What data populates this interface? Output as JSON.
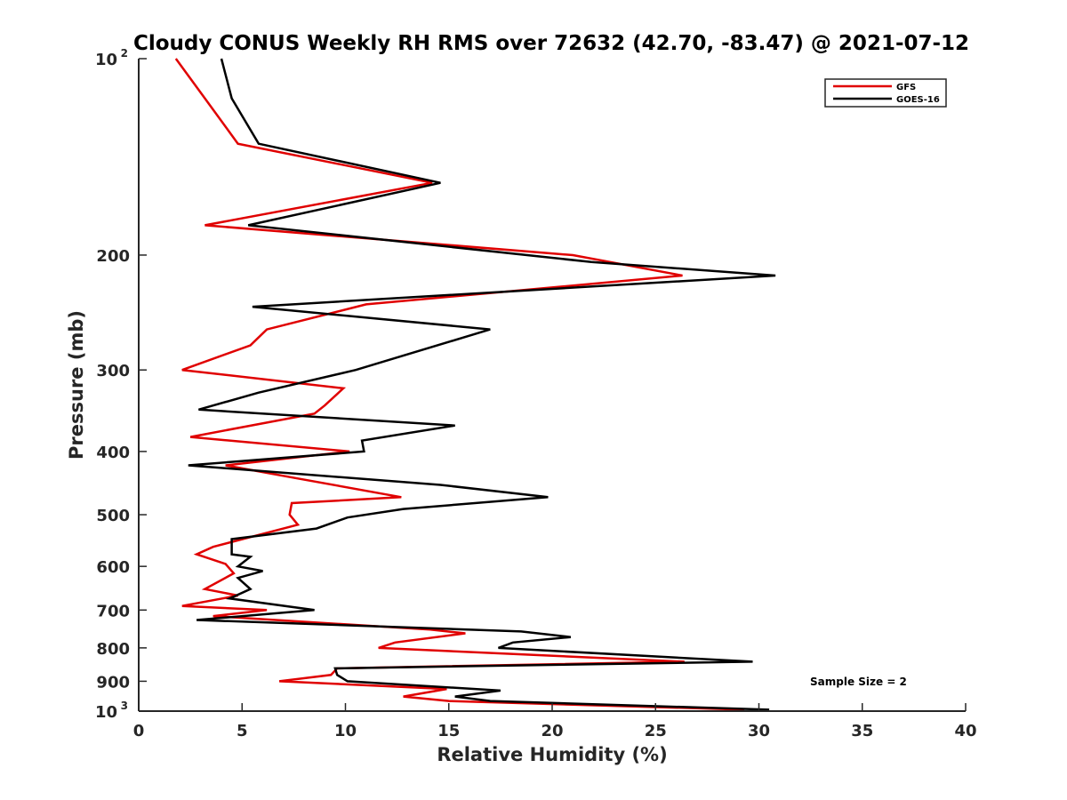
{
  "chart_data": {
    "type": "line",
    "title": "Cloudy CONUS Weekly RH RMS over 72632 (42.70, -83.47) @ 2021-07-12",
    "xlabel": "Relative Humidity (%)",
    "ylabel": "Pressure (mb)",
    "xlim": [
      0,
      40
    ],
    "ylim": [
      100,
      1000
    ],
    "yscale": "log",
    "y_reversed": true,
    "xticks": [
      0,
      5,
      10,
      15,
      20,
      25,
      30,
      35,
      40
    ],
    "xtick_labels": [
      "0",
      "5",
      "10",
      "15",
      "20",
      "25",
      "30",
      "35",
      "40"
    ],
    "yticks": [
      200,
      300,
      400,
      500,
      600,
      700,
      800,
      900
    ],
    "ytick_labels": [
      "200",
      "300",
      "400",
      "500",
      "600",
      "700",
      "800",
      "900"
    ],
    "ytick_ends": [
      {
        "value": 100,
        "base": "10",
        "exp": "2"
      },
      {
        "value": 1000,
        "base": "10",
        "exp": "3"
      }
    ],
    "grid": false,
    "legend_position": "top-right",
    "annotation": "Sample Size = 2",
    "series": [
      {
        "name": "GFS",
        "color": "#e00000",
        "points": [
          [
            1.8,
            100
          ],
          [
            3.2,
            115
          ],
          [
            4.8,
            135
          ],
          [
            14.2,
            155
          ],
          [
            3.2,
            180
          ],
          [
            21.0,
            200
          ],
          [
            26.3,
            215
          ],
          [
            11.0,
            238
          ],
          [
            6.2,
            260
          ],
          [
            5.4,
            275
          ],
          [
            2.1,
            300
          ],
          [
            9.9,
            320
          ],
          [
            9.0,
            340
          ],
          [
            8.5,
            350
          ],
          [
            2.5,
            380
          ],
          [
            10.2,
            400
          ],
          [
            4.2,
            420
          ],
          [
            7.7,
            440
          ],
          [
            12.7,
            470
          ],
          [
            7.4,
            480
          ],
          [
            7.3,
            500
          ],
          [
            7.7,
            518
          ],
          [
            3.6,
            560
          ],
          [
            2.8,
            575
          ],
          [
            4.2,
            595
          ],
          [
            4.6,
            615
          ],
          [
            3.2,
            650
          ],
          [
            4.8,
            665
          ],
          [
            2.1,
            690
          ],
          [
            6.2,
            700
          ],
          [
            3.6,
            715
          ],
          [
            14.1,
            750
          ],
          [
            15.8,
            760
          ],
          [
            12.4,
            785
          ],
          [
            11.6,
            800
          ],
          [
            26.4,
            840
          ],
          [
            9.6,
            860
          ],
          [
            9.3,
            880
          ],
          [
            6.8,
            900
          ],
          [
            14.9,
            925
          ],
          [
            12.8,
            950
          ],
          [
            15.0,
            965
          ],
          [
            29.3,
            995
          ]
        ]
      },
      {
        "name": "GOES-16",
        "color": "#000000",
        "points": [
          [
            4.0,
            100
          ],
          [
            4.5,
            115
          ],
          [
            5.8,
            135
          ],
          [
            14.6,
            155
          ],
          [
            5.3,
            180
          ],
          [
            21.9,
            205
          ],
          [
            30.8,
            215
          ],
          [
            5.5,
            240
          ],
          [
            17.0,
            260
          ],
          [
            10.5,
            300
          ],
          [
            5.8,
            325
          ],
          [
            2.9,
            345
          ],
          [
            15.3,
            365
          ],
          [
            10.8,
            385
          ],
          [
            10.9,
            400
          ],
          [
            2.4,
            420
          ],
          [
            14.6,
            450
          ],
          [
            19.8,
            470
          ],
          [
            12.8,
            490
          ],
          [
            10.1,
            505
          ],
          [
            8.6,
            525
          ],
          [
            4.5,
            545
          ],
          [
            4.5,
            575
          ],
          [
            5.4,
            580
          ],
          [
            4.8,
            600
          ],
          [
            6.0,
            610
          ],
          [
            4.8,
            625
          ],
          [
            5.4,
            650
          ],
          [
            4.4,
            672
          ],
          [
            8.5,
            700
          ],
          [
            2.8,
            725
          ],
          [
            18.5,
            755
          ],
          [
            20.9,
            770
          ],
          [
            18.1,
            785
          ],
          [
            17.4,
            800
          ],
          [
            29.7,
            840
          ],
          [
            9.5,
            860
          ],
          [
            9.6,
            880
          ],
          [
            10.1,
            900
          ],
          [
            17.5,
            930
          ],
          [
            15.3,
            950
          ],
          [
            17.0,
            965
          ],
          [
            30.5,
            995
          ]
        ]
      }
    ]
  }
}
